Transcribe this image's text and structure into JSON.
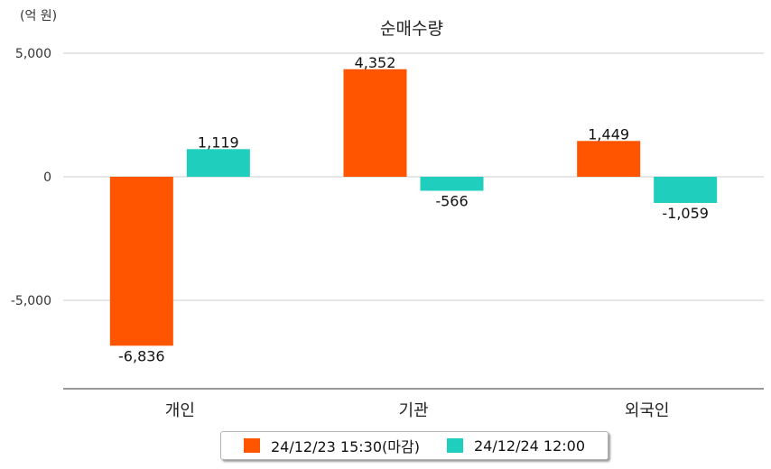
{
  "chart_data": {
    "type": "bar",
    "title": "순매수량",
    "unit_label": "(억 원)",
    "categories": [
      "개인",
      "기관",
      "외국인"
    ],
    "series": [
      {
        "name": "24/12/23 15:30(마감)",
        "color": "#ff5500",
        "values": [
          -6836,
          4352,
          1449
        ]
      },
      {
        "name": "24/12/24 12:00",
        "color": "#1fcebd",
        "values": [
          1119,
          -566,
          -1059
        ]
      }
    ],
    "yticks": [
      5000,
      0,
      -5000
    ],
    "ytick_labels": [
      "5,000",
      "0",
      "-5,000"
    ],
    "ylim": [
      -8500,
      5000
    ],
    "grid": true,
    "legend_position": "bottom"
  }
}
